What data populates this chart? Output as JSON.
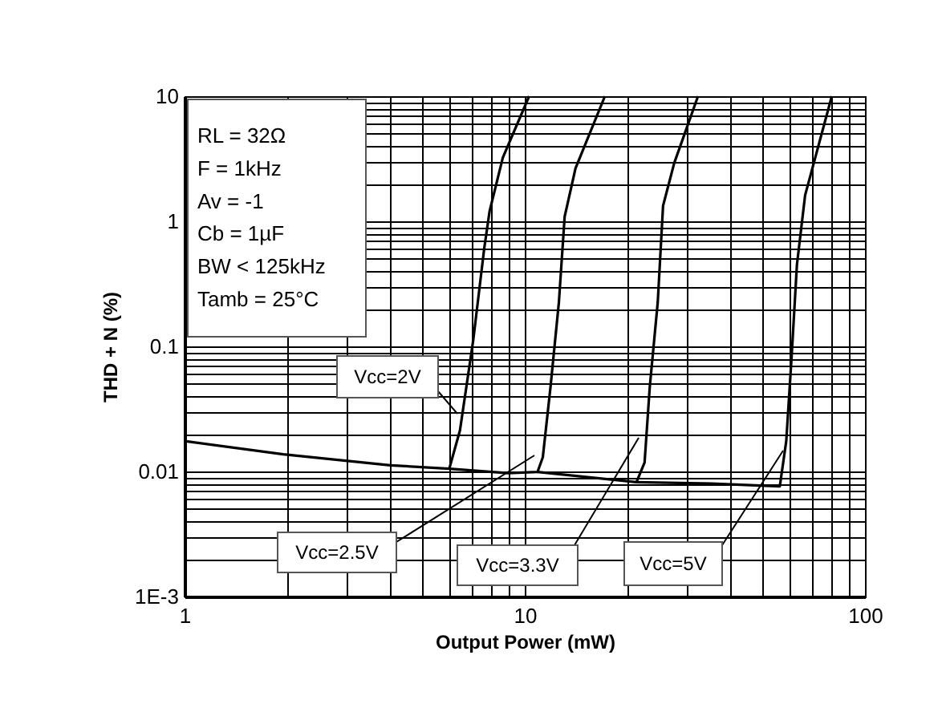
{
  "chart_data": {
    "type": "line",
    "xlabel": "Output Power (mW)",
    "ylabel": "THD + N (%)",
    "log": "xy",
    "grid": true,
    "legend": false,
    "marker": "none",
    "line_style": "solid",
    "annotations": [
      "RL = 32Ω",
      "F = 1kHz",
      "Av = -1",
      "Cb = 1µF",
      "BW < 125kHz",
      "Tamb = 25°C"
    ],
    "xlim": [
      1,
      100
    ],
    "ylim": [
      0.001,
      10
    ],
    "xticks": [
      1,
      {
        "value": 2,
        "label": null
      },
      {
        "value": 3,
        "label": null
      },
      {
        "value": 4,
        "label": null
      },
      {
        "value": 5,
        "label": null
      },
      {
        "value": 6,
        "label": null
      },
      {
        "value": 7,
        "label": null
      },
      {
        "value": 8,
        "label": null
      },
      {
        "value": 9,
        "label": null
      },
      10,
      {
        "value": 20,
        "label": null
      },
      {
        "value": 30,
        "label": null
      },
      {
        "value": 40,
        "label": null
      },
      {
        "value": 50,
        "label": null
      },
      {
        "value": 60,
        "label": null
      },
      {
        "value": 70,
        "label": null
      },
      {
        "value": 80,
        "label": null
      },
      {
        "value": 90,
        "label": null
      },
      100
    ],
    "yticks": [
      {
        "value": 0.001,
        "label": "1E-3"
      },
      {
        "value": 0.002,
        "label": null
      },
      {
        "value": 0.003,
        "label": null
      },
      {
        "value": 0.004,
        "label": null
      },
      {
        "value": 0.005,
        "label": null
      },
      {
        "value": 0.006,
        "label": null
      },
      {
        "value": 0.007,
        "label": null
      },
      {
        "value": 0.008,
        "label": null
      },
      {
        "value": 0.009,
        "label": null
      },
      0.01,
      {
        "value": 0.02,
        "label": null
      },
      {
        "value": 0.03,
        "label": null
      },
      {
        "value": 0.04,
        "label": null
      },
      {
        "value": 0.05,
        "label": null
      },
      {
        "value": 0.06,
        "label": null
      },
      {
        "value": 0.07,
        "label": null
      },
      {
        "value": 0.08,
        "label": null
      },
      {
        "value": 0.09,
        "label": null
      },
      0.1,
      {
        "value": 0.2,
        "label": null
      },
      {
        "value": 0.3,
        "label": null
      },
      {
        "value": 0.4,
        "label": null
      },
      {
        "value": 0.5,
        "label": null
      },
      {
        "value": 0.6,
        "label": null
      },
      {
        "value": 0.7,
        "label": null
      },
      {
        "value": 0.8,
        "label": null
      },
      {
        "value": 0.9,
        "label": null
      },
      1,
      {
        "value": 2,
        "label": null
      },
      {
        "value": 3,
        "label": null
      },
      {
        "value": 4,
        "label": null
      },
      {
        "value": 5,
        "label": null
      },
      {
        "value": 6,
        "label": null
      },
      {
        "value": 7,
        "label": null
      },
      {
        "value": 8,
        "label": null
      },
      {
        "value": 9,
        "label": null
      },
      10
    ],
    "series": [
      {
        "name": "Vcc=2V",
        "color": "#000000",
        "x": [
          1,
          1.95,
          4.03,
          6.0,
          6.45,
          7.06,
          7.6,
          7.88,
          8.62,
          10.3
        ],
        "values": [
          0.0175,
          0.0137,
          0.0112,
          0.0105,
          0.0213,
          0.1135,
          0.605,
          1.2,
          3.23,
          10
        ]
      },
      {
        "name": "Vcc=2.5V",
        "color": "#000000",
        "x": [
          6.0,
          8.94,
          10.9,
          11.3,
          11.9,
          12.6,
          13.1,
          14.1,
          17.2
        ],
        "values": [
          0.0105,
          0.0097,
          0.0099,
          0.013,
          0.0469,
          0.226,
          1.09,
          2.65,
          10
        ]
      },
      {
        "name": "Vcc=3.3V",
        "color": "#000000",
        "x": [
          10.9,
          21.3,
          22.5,
          23.3,
          24.6,
          25.5,
          27.5,
          32.3
        ],
        "values": [
          0.0099,
          0.0082,
          0.0118,
          0.047,
          0.226,
          1.33,
          2.92,
          10
        ]
      },
      {
        "name": "Vcc=5V",
        "color": "#000000",
        "x": [
          21.3,
          35.4,
          56.2,
          58.7,
          60.9,
          63.1,
          66.7,
          79.9
        ],
        "values": [
          0.0082,
          0.008,
          0.0076,
          0.0175,
          0.0845,
          0.45,
          1.62,
          10
        ]
      }
    ]
  }
}
